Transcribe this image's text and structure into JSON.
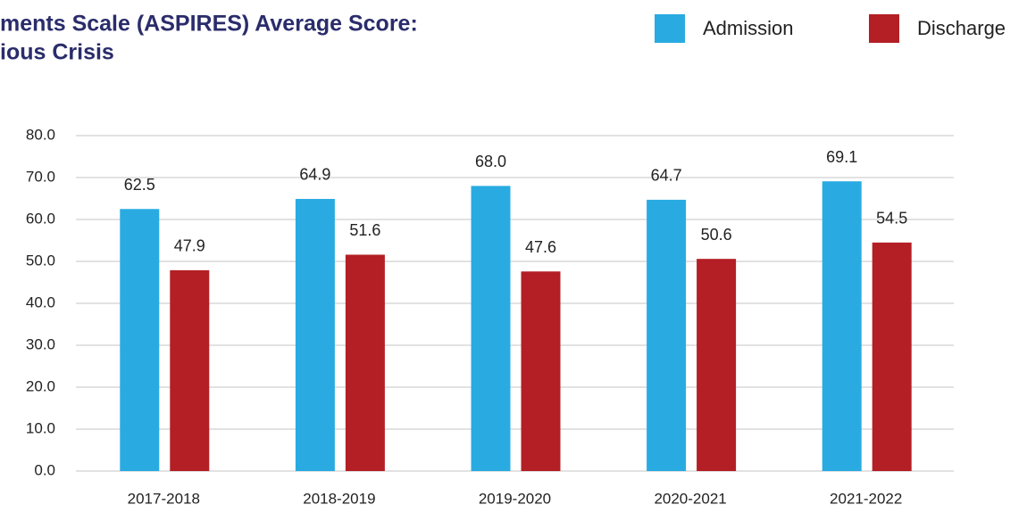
{
  "chart_data": {
    "type": "bar",
    "title_lines": [
      "ments Scale (ASPIRES) Average Score:",
      "ious Crisis"
    ],
    "categories": [
      "2017-2018",
      "2018-2019",
      "2019-2020",
      "2020-2021",
      "2021-2022"
    ],
    "series": [
      {
        "name": "Admission",
        "color": "#29abe2",
        "values": [
          62.5,
          64.9,
          68,
          64.7,
          69.1
        ],
        "value_labels": [
          "62.5",
          "64.9",
          "68.0",
          "64.7",
          "69.1"
        ]
      },
      {
        "name": "Discharge",
        "color": "#b31f25",
        "values": [
          47.9,
          51.6,
          47.6,
          50.6,
          54.5
        ],
        "value_labels": [
          "47.9",
          "51.6",
          "47.6",
          "50.6",
          "54.5"
        ]
      }
    ],
    "ylim": [
      0,
      80
    ],
    "yticks": [
      {
        "value": 0,
        "label": "0.0"
      },
      {
        "value": 10,
        "label": "10.0"
      },
      {
        "value": 20,
        "label": "20.0"
      },
      {
        "value": 30,
        "label": "30.0"
      },
      {
        "value": 40,
        "label": "40.0"
      },
      {
        "value": 50,
        "label": "50.0"
      },
      {
        "value": 60,
        "label": "60.0"
      },
      {
        "value": 70,
        "label": "70.0"
      },
      {
        "value": 80,
        "label": "80.0"
      }
    ],
    "grid": true
  }
}
